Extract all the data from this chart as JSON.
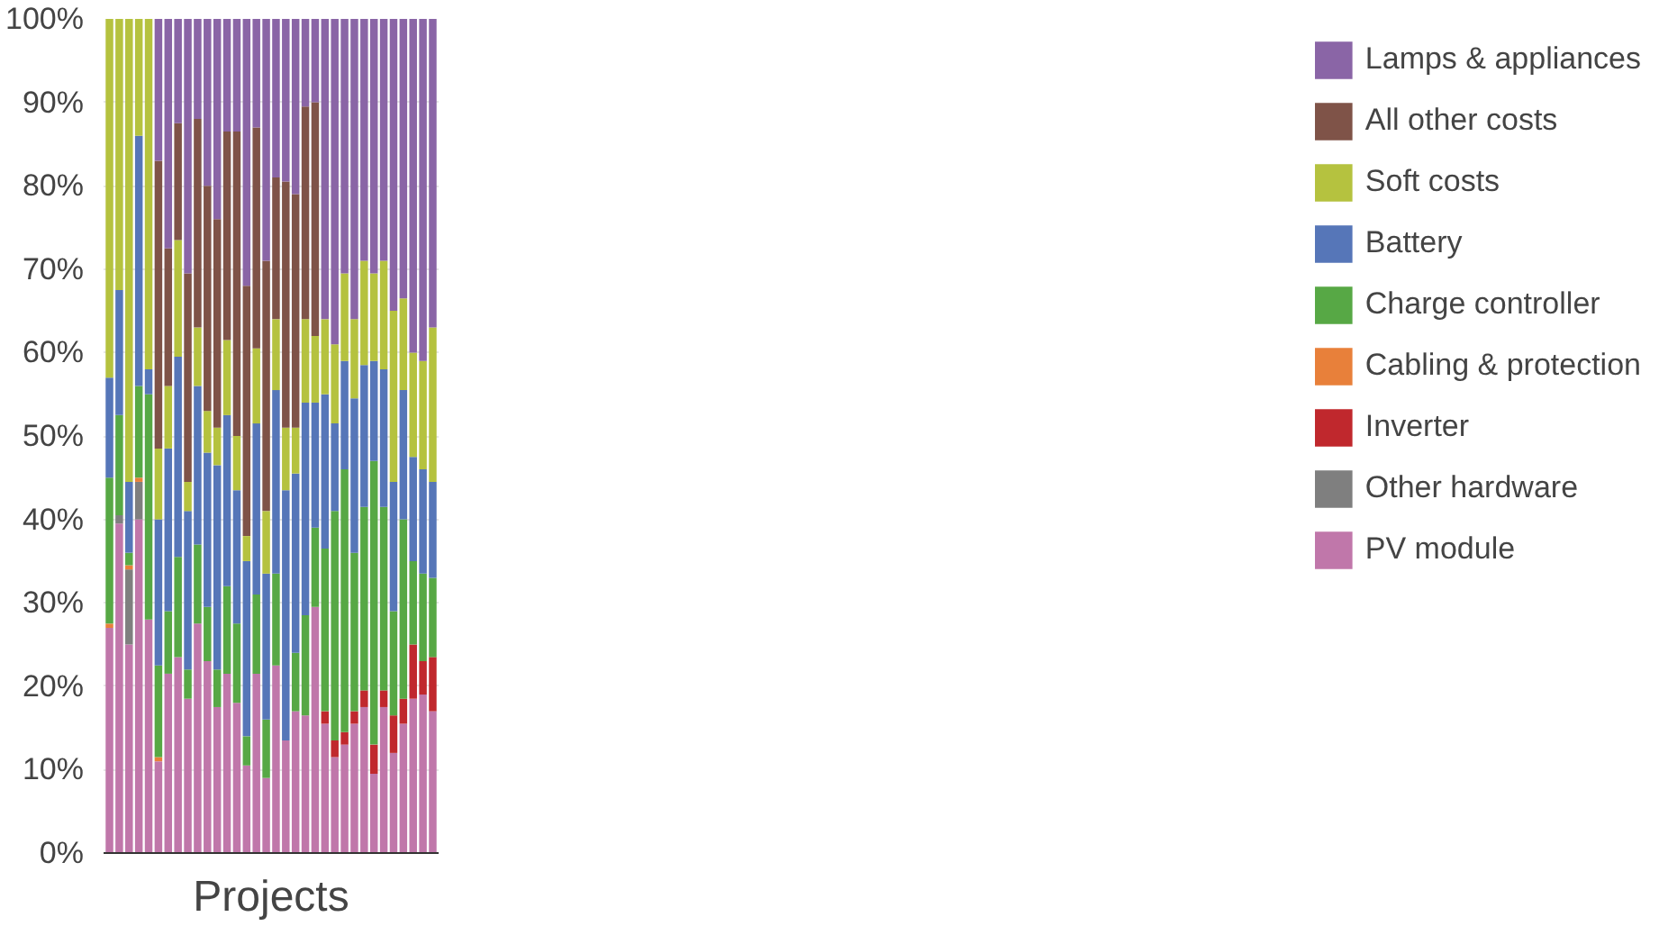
{
  "chart_data": {
    "type": "bar",
    "stacked": true,
    "xlabel": "Projects",
    "categories": [
      null,
      null,
      null,
      null,
      null,
      null,
      null,
      null,
      null,
      null,
      null,
      null,
      null,
      null,
      null,
      null,
      null,
      null,
      null,
      null,
      null,
      null,
      null,
      null,
      null,
      null,
      null,
      null,
      null,
      null,
      null,
      null,
      null,
      null
    ],
    "ylim": [
      0,
      100
    ],
    "yticks": [
      {
        "value": 0,
        "label": "0%"
      },
      {
        "value": 10,
        "label": "10%"
      },
      {
        "value": 20,
        "label": "20%"
      },
      {
        "value": 30,
        "label": "30%"
      },
      {
        "value": 40,
        "label": "40%"
      },
      {
        "value": 50,
        "label": "50%"
      },
      {
        "value": 60,
        "label": "60%"
      },
      {
        "value": 70,
        "label": "70%"
      },
      {
        "value": 80,
        "label": "80%"
      },
      {
        "value": 90,
        "label": "90%"
      },
      {
        "value": 100,
        "label": "100%"
      }
    ],
    "grid": "y",
    "legend": "right",
    "series": [
      {
        "name": "PV module",
        "color": "#c077aa",
        "values": [
          27,
          39.5,
          25,
          40,
          28,
          11,
          21.5,
          23.5,
          18.5,
          27.5,
          23,
          17.5,
          21.5,
          18,
          10.5,
          21.5,
          9,
          22.5,
          13.5,
          17,
          16.5,
          29.5,
          15.5,
          11.5,
          13,
          15.5,
          17.5,
          9.5,
          17.5,
          12,
          15.5,
          18.5,
          19,
          17
        ]
      },
      {
        "name": "Other hardware",
        "color": "#7f7f7f",
        "values": [
          0,
          1,
          9,
          4.5,
          0,
          0,
          0,
          0,
          0,
          0,
          0,
          0,
          0,
          0,
          0,
          0,
          0,
          0,
          0,
          0,
          0,
          0,
          0,
          0,
          0,
          0,
          0,
          0,
          0,
          0,
          0,
          0,
          0,
          0
        ]
      },
      {
        "name": "Inverter",
        "color": "#c0282d",
        "values": [
          0,
          0,
          0,
          0,
          0,
          0,
          0,
          0,
          0,
          0,
          0,
          0,
          0,
          0,
          0,
          0,
          0,
          0,
          0,
          0,
          0,
          0,
          1.5,
          2,
          1.5,
          1.5,
          2,
          3.5,
          2,
          4.5,
          3,
          6.5,
          4,
          6.5
        ]
      },
      {
        "name": "Cabling & protection",
        "color": "#e8803a",
        "values": [
          0.5,
          0,
          0.5,
          0.5,
          0,
          0.5,
          0,
          0,
          0,
          0,
          0,
          0,
          0,
          0,
          0,
          0,
          0,
          0,
          0,
          0,
          0,
          0,
          0,
          0,
          0,
          0,
          0,
          0,
          0,
          0,
          0,
          0,
          0,
          0
        ]
      },
      {
        "name": "Charge controller",
        "color": "#57a845",
        "values": [
          17.5,
          12,
          1.5,
          11,
          27,
          11,
          7.5,
          12,
          3.5,
          9.5,
          6.5,
          4.5,
          10.5,
          9.5,
          3.5,
          9.5,
          7,
          11,
          0,
          7,
          12,
          9.5,
          19.5,
          27.5,
          31.5,
          19,
          22,
          34,
          22,
          12.5,
          21.5,
          10,
          10.5,
          9.5
        ]
      },
      {
        "name": "Battery",
        "color": "#5676b8",
        "values": [
          12,
          15,
          8.5,
          30,
          3,
          17.5,
          19.5,
          24,
          19,
          19,
          18.5,
          24.5,
          20.5,
          16,
          21,
          20.5,
          17.5,
          22,
          30,
          21.5,
          25.5,
          15,
          18.5,
          10.5,
          13,
          18.5,
          17,
          12,
          16.5,
          15.5,
          15.5,
          12.5,
          12.5,
          11.5
        ]
      },
      {
        "name": "Soft costs",
        "color": "#b5c23f",
        "values": [
          43,
          32.5,
          55.5,
          14,
          42,
          8.5,
          7.5,
          14,
          3.5,
          7,
          5,
          4.5,
          9,
          6.5,
          3,
          9,
          7.5,
          8.5,
          7.5,
          5.5,
          10,
          8,
          9,
          9.5,
          10.5,
          9.5,
          12.5,
          10.5,
          13,
          20.5,
          11,
          12.5,
          13,
          18.5
        ]
      },
      {
        "name": "All other costs",
        "color": "#7f5348",
        "values": [
          0,
          0,
          0,
          0,
          0,
          34.5,
          16.5,
          14,
          25,
          25,
          27,
          25,
          25,
          36.5,
          30,
          26.5,
          30,
          17,
          29.5,
          28,
          25.5,
          28,
          0,
          0,
          0,
          0,
          0,
          0,
          0,
          0,
          0,
          0,
          0,
          0
        ]
      },
      {
        "name": "Lamps & appliances",
        "color": "#8a65a6",
        "values": [
          0,
          0,
          0,
          0,
          0,
          17,
          27.5,
          12.5,
          30.5,
          12,
          20,
          24,
          13.5,
          13.5,
          32,
          13,
          29,
          19,
          19.5,
          21,
          10.5,
          10,
          36,
          39,
          30.5,
          36,
          29,
          30.5,
          29,
          35,
          33.5,
          40,
          41,
          37
        ]
      }
    ]
  }
}
